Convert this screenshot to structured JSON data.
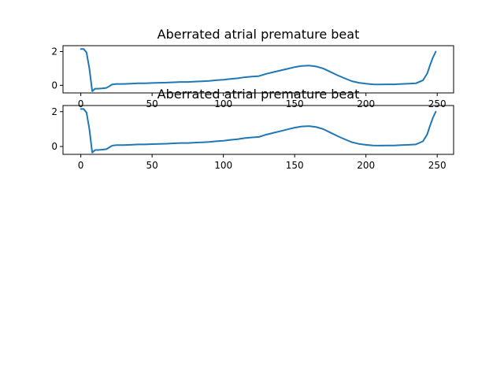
{
  "chart_data": [
    {
      "type": "line",
      "title": "Aberrated atrial premature beat",
      "xlabel": "",
      "ylabel": "",
      "xlim": [
        -12.5,
        261.5
      ],
      "ylim": [
        -0.45,
        2.35
      ],
      "xticks": [
        0,
        50,
        100,
        150,
        200,
        250
      ],
      "yticks": [
        0,
        2
      ],
      "grid": false,
      "line_color": "#1f77b4",
      "series": [
        {
          "x": [
            0,
            2,
            4,
            6,
            8,
            10,
            12,
            15,
            18,
            20,
            22,
            25,
            30,
            35,
            40,
            45,
            50,
            55,
            60,
            65,
            70,
            75,
            80,
            85,
            90,
            95,
            100,
            105,
            110,
            115,
            120,
            125,
            130,
            135,
            140,
            145,
            150,
            155,
            160,
            165,
            170,
            175,
            180,
            185,
            190,
            195,
            200,
            205,
            210,
            215,
            220,
            225,
            230,
            235,
            240,
            243,
            245,
            247,
            249
          ],
          "y": [
            2.15,
            2.15,
            1.95,
            1.0,
            -0.35,
            -0.2,
            -0.2,
            -0.18,
            -0.15,
            -0.05,
            0.05,
            0.08,
            0.08,
            0.1,
            0.12,
            0.12,
            0.14,
            0.15,
            0.16,
            0.18,
            0.2,
            0.2,
            0.22,
            0.24,
            0.26,
            0.3,
            0.33,
            0.38,
            0.42,
            0.48,
            0.52,
            0.55,
            0.68,
            0.78,
            0.88,
            0.98,
            1.08,
            1.15,
            1.17,
            1.12,
            1.0,
            0.8,
            0.6,
            0.42,
            0.25,
            0.15,
            0.1,
            0.06,
            0.05,
            0.06,
            0.06,
            0.08,
            0.1,
            0.12,
            0.3,
            0.7,
            1.2,
            1.65,
            2.0
          ]
        }
      ]
    },
    {
      "type": "line",
      "title": "Aberrated atrial premature beat",
      "xlabel": "",
      "ylabel": "",
      "xlim": [
        -12.5,
        261.5
      ],
      "ylim": [
        -0.45,
        2.35
      ],
      "xticks": [
        0,
        50,
        100,
        150,
        200,
        250
      ],
      "yticks": [
        0,
        2
      ],
      "grid": false,
      "line_color": "#1f77b4",
      "series": [
        {
          "x": [
            0,
            2,
            4,
            6,
            8,
            10,
            12,
            15,
            18,
            20,
            22,
            25,
            30,
            35,
            40,
            45,
            50,
            55,
            60,
            65,
            70,
            75,
            80,
            85,
            90,
            95,
            100,
            105,
            110,
            115,
            120,
            125,
            130,
            135,
            140,
            145,
            150,
            155,
            160,
            165,
            170,
            175,
            180,
            185,
            190,
            195,
            200,
            205,
            210,
            215,
            220,
            225,
            230,
            235,
            240,
            243,
            245,
            247,
            249
          ],
          "y": [
            2.15,
            2.15,
            1.95,
            1.0,
            -0.35,
            -0.2,
            -0.2,
            -0.18,
            -0.15,
            -0.05,
            0.05,
            0.08,
            0.08,
            0.1,
            0.12,
            0.12,
            0.14,
            0.15,
            0.16,
            0.18,
            0.2,
            0.2,
            0.22,
            0.24,
            0.26,
            0.3,
            0.33,
            0.38,
            0.42,
            0.48,
            0.52,
            0.55,
            0.68,
            0.78,
            0.88,
            0.98,
            1.08,
            1.15,
            1.17,
            1.12,
            1.0,
            0.8,
            0.6,
            0.42,
            0.25,
            0.15,
            0.1,
            0.06,
            0.05,
            0.06,
            0.06,
            0.08,
            0.1,
            0.12,
            0.3,
            0.7,
            1.2,
            1.65,
            2.0
          ]
        }
      ]
    }
  ]
}
